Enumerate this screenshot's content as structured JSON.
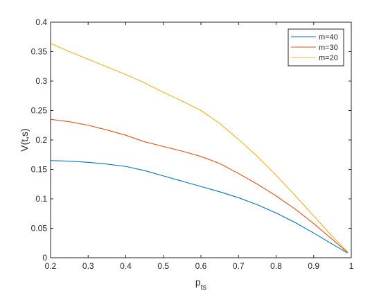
{
  "chart_data": {
    "type": "line",
    "title": "",
    "xlabel_main": "p",
    "xlabel_sub": "ts",
    "ylabel": "V(t,s)",
    "xlim": [
      0.2,
      1.0
    ],
    "ylim": [
      0,
      0.4
    ],
    "xticks": [
      0.2,
      0.3,
      0.4,
      0.5,
      0.6,
      0.7,
      0.8,
      0.9,
      1.0
    ],
    "xtick_labels": [
      "0.2",
      "0.3",
      "0.4",
      "0.5",
      "0.6",
      "0.7",
      "0.8",
      "0.9",
      "1"
    ],
    "yticks": [
      0,
      0.05,
      0.1,
      0.15,
      0.2,
      0.25,
      0.3,
      0.35,
      0.4
    ],
    "ytick_labels": [
      "0",
      "0.05",
      "0.1",
      "0.15",
      "0.2",
      "0.25",
      "0.3",
      "0.35",
      "0.4"
    ],
    "grid": false,
    "legend_position": "top-right",
    "series": [
      {
        "name": "m=40",
        "color": "#0072BD",
        "x": [
          0.2,
          0.25,
          0.3,
          0.35,
          0.4,
          0.45,
          0.5,
          0.55,
          0.6,
          0.65,
          0.7,
          0.75,
          0.8,
          0.85,
          0.9,
          0.95,
          0.99
        ],
        "y": [
          0.165,
          0.164,
          0.162,
          0.159,
          0.155,
          0.148,
          0.139,
          0.13,
          0.121,
          0.112,
          0.102,
          0.09,
          0.076,
          0.06,
          0.042,
          0.023,
          0.008
        ]
      },
      {
        "name": "m=30",
        "color": "#D95319",
        "x": [
          0.2,
          0.25,
          0.3,
          0.35,
          0.4,
          0.45,
          0.5,
          0.55,
          0.6,
          0.65,
          0.7,
          0.75,
          0.8,
          0.85,
          0.9,
          0.95,
          0.99
        ],
        "y": [
          0.235,
          0.231,
          0.225,
          0.217,
          0.208,
          0.197,
          0.189,
          0.181,
          0.172,
          0.16,
          0.143,
          0.125,
          0.105,
          0.083,
          0.058,
          0.031,
          0.009
        ]
      },
      {
        "name": "m=20",
        "color": "#EDB120",
        "x": [
          0.2,
          0.25,
          0.3,
          0.35,
          0.4,
          0.45,
          0.5,
          0.55,
          0.6,
          0.65,
          0.7,
          0.75,
          0.8,
          0.85,
          0.9,
          0.95,
          0.99
        ],
        "y": [
          0.364,
          0.35,
          0.337,
          0.324,
          0.311,
          0.297,
          0.281,
          0.266,
          0.25,
          0.228,
          0.201,
          0.172,
          0.14,
          0.106,
          0.071,
          0.036,
          0.01
        ]
      }
    ]
  }
}
